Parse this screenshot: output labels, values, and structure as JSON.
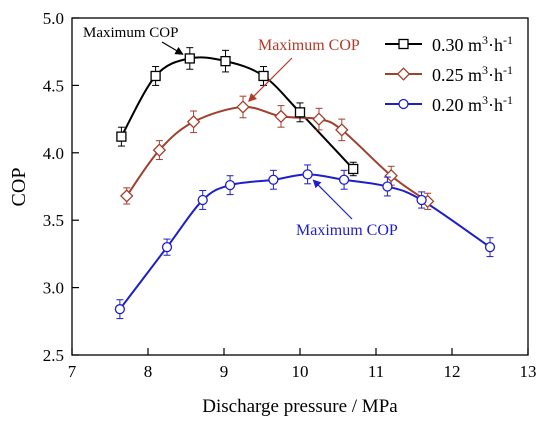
{
  "chart_data": {
    "type": "line",
    "xlabel": "Discharge pressure  / MPa",
    "ylabel": "COP",
    "xlim": [
      7,
      13
    ],
    "ylim": [
      2.5,
      5.0
    ],
    "xticks": [
      "7",
      "8",
      "9",
      "10",
      "11",
      "12",
      "13"
    ],
    "yticks": [
      "2.5",
      "3.0",
      "3.5",
      "4.0",
      "4.5",
      "5.0"
    ],
    "grid": false,
    "legend_position": "top-right",
    "series": [
      {
        "name": "0.30 m³·h⁻¹",
        "legend": {
          "base": "0.30 m",
          "sup1": "3",
          "mid": "·h",
          "sup2": "-1"
        },
        "color": "#000000",
        "marker": "square",
        "x": [
          7.65,
          8.1,
          8.55,
          9.02,
          9.52,
          10.0,
          10.7
        ],
        "y": [
          4.12,
          4.57,
          4.7,
          4.68,
          4.57,
          4.3,
          3.88
        ],
        "error": [
          0.07,
          0.07,
          0.08,
          0.08,
          0.07,
          0.07,
          0.05
        ]
      },
      {
        "name": "0.25 m³·h⁻¹",
        "legend": {
          "base": "0.25 m",
          "sup1": "3",
          "mid": "·h",
          "sup2": "-1"
        },
        "color": "#a0402e",
        "marker": "diamond",
        "x": [
          7.72,
          8.15,
          8.6,
          9.25,
          9.75,
          10.25,
          10.55,
          11.2,
          11.68
        ],
        "y": [
          3.68,
          4.02,
          4.23,
          4.34,
          4.27,
          4.25,
          4.17,
          3.83,
          3.64
        ],
        "error": [
          0.06,
          0.07,
          0.08,
          0.08,
          0.08,
          0.08,
          0.08,
          0.07,
          0.06
        ]
      },
      {
        "name": "0.20 m³·h⁻¹",
        "legend": {
          "base": "0.20 m",
          "sup1": "3",
          "mid": "·h",
          "sup2": "-1"
        },
        "color": "#1f1fc8",
        "marker": "circle",
        "x": [
          7.63,
          8.25,
          8.72,
          9.08,
          9.65,
          10.1,
          10.58,
          11.15,
          11.6,
          12.5
        ],
        "y": [
          2.84,
          3.3,
          3.65,
          3.76,
          3.8,
          3.84,
          3.8,
          3.75,
          3.65,
          3.3
        ],
        "error": [
          0.07,
          0.06,
          0.07,
          0.07,
          0.07,
          0.07,
          0.07,
          0.07,
          0.06,
          0.07
        ]
      }
    ],
    "annotations": [
      {
        "text": "Maximum COP",
        "color": "#000000",
        "series": 0,
        "point_x": 8.55,
        "point_y": 4.7
      },
      {
        "text": "Maximum COP",
        "color": "#b43a26",
        "series": 1,
        "point_x": 9.25,
        "point_y": 4.34
      },
      {
        "text": "Maximum COP",
        "color": "#1f1fc8",
        "series": 2,
        "point_x": 10.1,
        "point_y": 3.84
      }
    ]
  }
}
